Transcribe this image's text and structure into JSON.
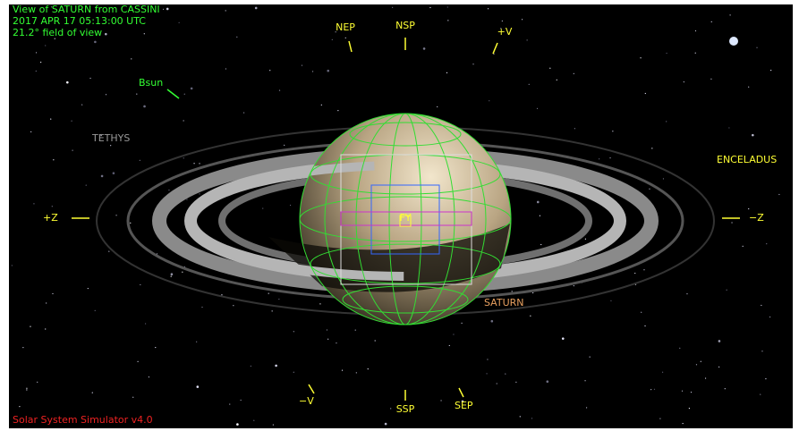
{
  "header": {
    "title": "View of SATURN from CASSINI",
    "time": "2017 APR 17 05:13:00 UTC",
    "fov": "21.2° field of view"
  },
  "markers": {
    "nep": "NEP",
    "nsp_top": "NSP",
    "plus_v": "+V",
    "bsun": "Bsun",
    "plus_z": "+Z",
    "minus_z": "−Z",
    "minus_v": "−V",
    "ssp": "SSP",
    "sep": "SEP",
    "center": "FY"
  },
  "bodies": {
    "tethys": "TETHYS",
    "enceladus": "ENCELADUS",
    "saturn": "SATURN"
  },
  "footer": {
    "app": "Solar System Simulator v4.0"
  }
}
